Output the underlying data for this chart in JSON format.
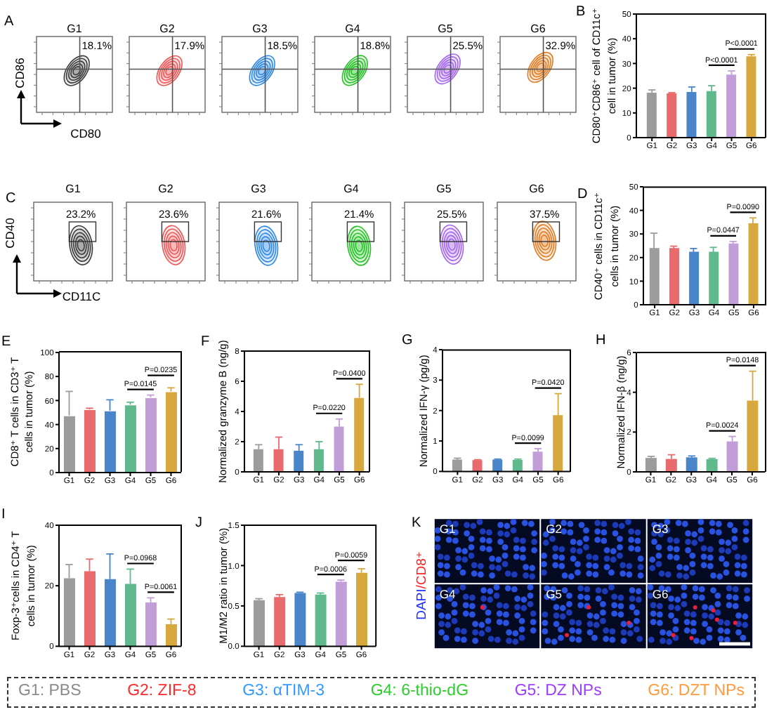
{
  "chart_data": [
    {
      "type": "other",
      "title": "A",
      "xlabel": "CD80",
      "ylabel": "CD86",
      "categories": [
        "G1",
        "G2",
        "G3",
        "G4",
        "G5",
        "G6"
      ],
      "values": [
        18.1,
        17.9,
        18.5,
        18.8,
        25.5,
        32.9
      ],
      "value_labels": [
        "18.1%",
        "17.9%",
        "18.5%",
        "18.8%",
        "25.5%",
        "32.9%"
      ],
      "colors": [
        "#3c3c3c",
        "#f25555",
        "#2e88e8",
        "#22c322",
        "#a266f0",
        "#e27b22"
      ]
    },
    {
      "type": "bar",
      "title": "B",
      "ylabel": "CD80⁺CD86⁺ cell of CD11c⁺\ncell in tumor (%)",
      "categories": [
        "G1",
        "G2",
        "G3",
        "G4",
        "G5",
        "G6"
      ],
      "values": [
        18.2,
        17.9,
        18.5,
        18.8,
        25.5,
        32.9
      ],
      "errors": [
        [
          18.2,
          19.3
        ],
        [
          17.9,
          18.2
        ],
        [
          18.5,
          20.5
        ],
        [
          18.8,
          21
        ],
        [
          25.5,
          27
        ],
        [
          32.9,
          33.6
        ]
      ],
      "colors": [
        "#9c9c9c",
        "#e86a6c",
        "#4a84c9",
        "#5fb98c",
        "#c29ed8",
        "#d6a83e"
      ],
      "ylim": [
        0,
        50
      ],
      "yticks": [
        0,
        10,
        20,
        30,
        40,
        50
      ],
      "annotations": [
        "P<0.0001",
        "P<0.0001"
      ]
    },
    {
      "type": "other",
      "title": "C",
      "xlabel": "CD11C",
      "ylabel": "CD40",
      "categories": [
        "G1",
        "G2",
        "G3",
        "G4",
        "G5",
        "G6"
      ],
      "values": [
        23.2,
        23.6,
        21.6,
        21.4,
        25.5,
        37.5
      ],
      "value_labels": [
        "23.2%",
        "23.6%",
        "21.6%",
        "21.4%",
        "25.5%",
        "37.5%"
      ],
      "colors": [
        "#3c3c3c",
        "#f25555",
        "#2e88e8",
        "#22c322",
        "#a266f0",
        "#e27b22"
      ]
    },
    {
      "type": "bar",
      "title": "D",
      "ylabel": "CD40⁺ cells in CD11c⁺\ncells in tumor (%)",
      "categories": [
        "G1",
        "G2",
        "G3",
        "G4",
        "G5",
        "G6"
      ],
      "values": [
        24,
        24,
        22.5,
        22.5,
        26,
        34.5
      ],
      "errors": [
        [
          24,
          30.5
        ],
        [
          24,
          25
        ],
        [
          22.5,
          24
        ],
        [
          22.5,
          24.5
        ],
        [
          26,
          27
        ],
        [
          34.5,
          37
        ]
      ],
      "colors": [
        "#9c9c9c",
        "#e86a6c",
        "#4a84c9",
        "#5fb98c",
        "#c29ed8",
        "#d6a83e"
      ],
      "ylim": [
        0,
        50
      ],
      "yticks": [
        0,
        10,
        20,
        30,
        40,
        50
      ],
      "annotations": [
        "P=0.0447",
        "P=0.0090"
      ]
    },
    {
      "type": "bar",
      "title": "E",
      "ylabel": "CD8⁺ T cells in CD3⁺ T\ncells in tumor (%)",
      "categories": [
        "G1",
        "G2",
        "G3",
        "G4",
        "G5",
        "G6"
      ],
      "values": [
        47,
        52,
        51,
        56,
        62,
        67
      ],
      "errors": [
        [
          47,
          67
        ],
        [
          52,
          53
        ],
        [
          51,
          60
        ],
        [
          56,
          58
        ],
        [
          62,
          64
        ],
        [
          67,
          70
        ]
      ],
      "colors": [
        "#9c9c9c",
        "#e86a6c",
        "#4a84c9",
        "#5fb98c",
        "#c29ed8",
        "#d6a83e"
      ],
      "ylim": [
        0,
        100
      ],
      "yticks": [
        0,
        20,
        40,
        60,
        80,
        100
      ],
      "annotations": [
        "P=0.0145",
        "P=0.0235"
      ]
    },
    {
      "type": "bar",
      "title": "F",
      "ylabel": "Normalized granzyme B (ng/g)",
      "categories": [
        "G1",
        "G2",
        "G3",
        "G4",
        "G5",
        "G6"
      ],
      "values": [
        1.5,
        1.5,
        1.4,
        1.5,
        3,
        4.9
      ],
      "errors": [
        [
          1.5,
          1.8
        ],
        [
          1.5,
          2.3
        ],
        [
          1.4,
          1.8
        ],
        [
          1.5,
          2
        ],
        [
          3,
          3.5
        ],
        [
          4.9,
          5.8
        ]
      ],
      "colors": [
        "#9c9c9c",
        "#e86a6c",
        "#4a84c9",
        "#5fb98c",
        "#c29ed8",
        "#d6a83e"
      ],
      "ylim": [
        0,
        8
      ],
      "yticks": [
        0,
        2,
        4,
        6,
        8
      ],
      "annotations": [
        "P=0.0220",
        "P=0.0400"
      ]
    },
    {
      "type": "bar",
      "title": "G",
      "ylabel": "Normalized IFN-γ (pg/g)",
      "categories": [
        "G1",
        "G2",
        "G3",
        "G4",
        "G5",
        "G6"
      ],
      "values": [
        0.39,
        0.37,
        0.39,
        0.38,
        0.65,
        1.85
      ],
      "errors": [
        [
          0.39,
          0.45
        ],
        [
          0.37,
          0.4
        ],
        [
          0.39,
          0.42
        ],
        [
          0.38,
          0.42
        ],
        [
          0.65,
          0.76
        ],
        [
          1.85,
          2.57
        ]
      ],
      "colors": [
        "#9c9c9c",
        "#e86a6c",
        "#4a84c9",
        "#5fb98c",
        "#c29ed8",
        "#d6a83e"
      ],
      "ylim": [
        0,
        4
      ],
      "yticks": [
        0,
        1,
        2,
        3,
        4
      ],
      "annotations": [
        "P=0.0099",
        "P=0.0420"
      ]
    },
    {
      "type": "bar",
      "title": "H",
      "ylabel": "Normalized IFN-β (ng/g)",
      "categories": [
        "G1",
        "G2",
        "G3",
        "G4",
        "G5",
        "G6"
      ],
      "values": [
        0.7,
        0.65,
        0.73,
        0.64,
        1.53,
        3.58
      ],
      "errors": [
        [
          0.7,
          0.78
        ],
        [
          0.65,
          0.86
        ],
        [
          0.73,
          0.8
        ],
        [
          0.64,
          0.68
        ],
        [
          1.53,
          1.78
        ],
        [
          3.58,
          5.06
        ]
      ],
      "colors": [
        "#9c9c9c",
        "#e86a6c",
        "#4a84c9",
        "#5fb98c",
        "#c29ed8",
        "#d6a83e"
      ],
      "ylim": [
        0,
        6
      ],
      "yticks": [
        0,
        2,
        4,
        6
      ],
      "annotations": [
        "P=0.0024",
        "P=0.0148"
      ]
    },
    {
      "type": "bar",
      "title": "I",
      "ylabel": "Foxp-3⁺cells in CD4⁺ T\ncells in tumor (%)",
      "categories": [
        "G1",
        "G2",
        "G3",
        "G4",
        "G5",
        "G6"
      ],
      "values": [
        22.5,
        24.8,
        22.2,
        20.6,
        14.5,
        7.3
      ],
      "errors": [
        [
          22.5,
          27
        ],
        [
          24.8,
          28.8
        ],
        [
          22.2,
          30.5
        ],
        [
          20.6,
          25.5
        ],
        [
          14.5,
          16
        ],
        [
          7.3,
          9
        ]
      ],
      "colors": [
        "#9c9c9c",
        "#e86a6c",
        "#4a84c9",
        "#5fb98c",
        "#c29ed8",
        "#d6a83e"
      ],
      "ylim": [
        0,
        40
      ],
      "yticks": [
        0,
        20,
        40
      ],
      "annotations": [
        "P=0.0968",
        "P=0.0061"
      ]
    },
    {
      "type": "bar",
      "title": "J",
      "ylabel": "M1/M2 ratio in tumor (%)",
      "categories": [
        "G1",
        "G2",
        "G3",
        "G4",
        "G5",
        "G6"
      ],
      "values": [
        0.57,
        0.61,
        0.66,
        0.64,
        0.8,
        0.91
      ],
      "errors": [
        [
          0.57,
          0.59
        ],
        [
          0.61,
          0.64
        ],
        [
          0.66,
          0.67
        ],
        [
          0.64,
          0.66
        ],
        [
          0.8,
          0.82
        ],
        [
          0.91,
          0.96
        ]
      ],
      "colors": [
        "#9c9c9c",
        "#e86a6c",
        "#4a84c9",
        "#5fb98c",
        "#c29ed8",
        "#d6a83e"
      ],
      "ylim": [
        0,
        1.5
      ],
      "yticks": [
        {
          "value": 0,
          "label": "0.0"
        },
        {
          "value": 0.5,
          "label": "0.5"
        },
        {
          "value": 1,
          "label": "1.0"
        },
        1.5
      ],
      "annotations": [
        "P=0.0006",
        "P=0.0059"
      ]
    },
    {
      "type": "other",
      "title": "K",
      "ylabel": "DAPI/CD8⁺",
      "categories": [
        "G1",
        "G2",
        "G3",
        "G4",
        "G5",
        "G6"
      ]
    },
    {
      "type": "other",
      "categories": [
        "G1: PBS",
        "G2: ZIF-8",
        "G3: αTIM-3",
        "G4: 6-thio-dG",
        "G5: DZ NPs",
        "G6: DZT NPs"
      ],
      "colors": [
        "#8a8a8a",
        "#ff2b2b",
        "#3399ff",
        "#2ecc2e",
        "#9b3dff",
        "#ff9a3c"
      ]
    }
  ]
}
